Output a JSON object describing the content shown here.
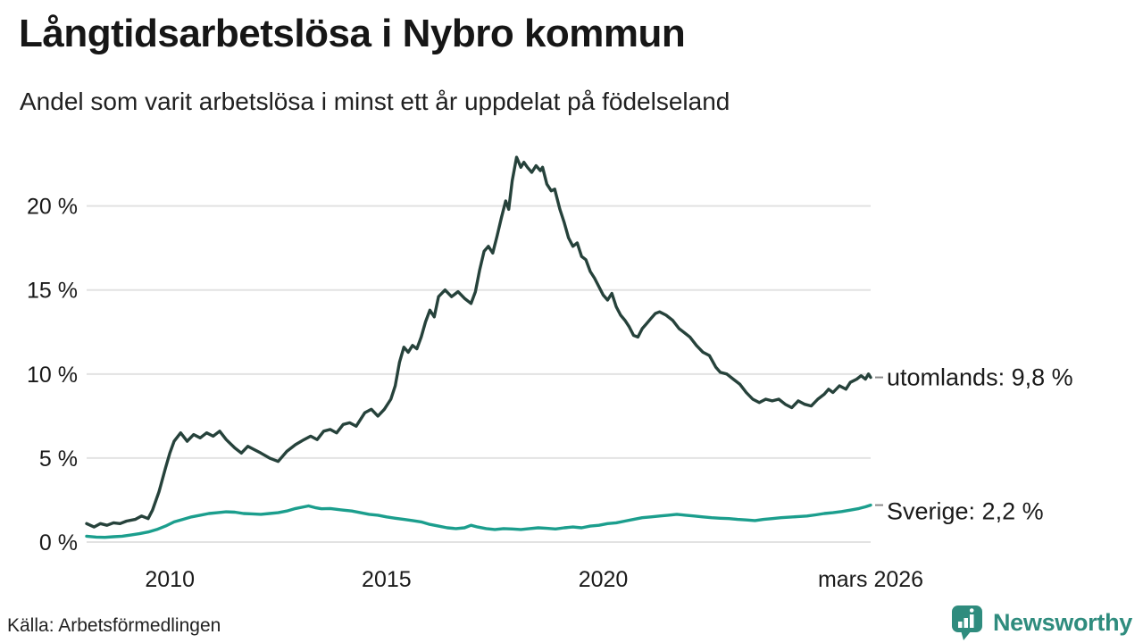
{
  "header": {
    "title": "Långtidsarbetslösa i Nybro kommun",
    "subtitle": "Andel som varit arbetslösa i minst ett år uppdelat på födelseland"
  },
  "chart_data": {
    "type": "line",
    "title": "Långtidsarbetslösa i Nybro kommun",
    "subtitle": "Andel som varit arbetslösa i minst ett år uppdelat på födelseland",
    "x_unit": "decimal_year",
    "xlim": [
      2008.08,
      2026.17
    ],
    "ylim": [
      0,
      23.7
    ],
    "grid": "horizontal",
    "grid_color": "#e2e2e2",
    "text_color": "#1a1a1a",
    "leader_color": "#8a8a8a",
    "y_ticks": [
      {
        "value": 0,
        "label": "0 %"
      },
      {
        "value": 5,
        "label": "5 %"
      },
      {
        "value": 10,
        "label": "10 %"
      },
      {
        "value": 15,
        "label": "15 %"
      },
      {
        "value": 20,
        "label": "20 %"
      }
    ],
    "x_ticks": [
      {
        "value": 2010,
        "label": "2010"
      },
      {
        "value": 2015,
        "label": "2015"
      },
      {
        "value": 2020,
        "label": "2020"
      },
      {
        "value": 2026.17,
        "label": "mars 2026"
      }
    ],
    "series": [
      {
        "name": "utomlands",
        "color": "#26423b",
        "end_label": "utomlands: 9,8 %",
        "end_value": 9.8,
        "label_dy": 0,
        "points": [
          [
            2008.08,
            1.1
          ],
          [
            2008.25,
            0.9
          ],
          [
            2008.4,
            1.1
          ],
          [
            2008.55,
            1.0
          ],
          [
            2008.7,
            1.15
          ],
          [
            2008.85,
            1.1
          ],
          [
            2009.0,
            1.25
          ],
          [
            2009.2,
            1.35
          ],
          [
            2009.35,
            1.55
          ],
          [
            2009.5,
            1.4
          ],
          [
            2009.6,
            1.9
          ],
          [
            2009.75,
            3.0
          ],
          [
            2009.9,
            4.4
          ],
          [
            2010.0,
            5.3
          ],
          [
            2010.1,
            6.0
          ],
          [
            2010.25,
            6.5
          ],
          [
            2010.4,
            6.0
          ],
          [
            2010.55,
            6.4
          ],
          [
            2010.7,
            6.2
          ],
          [
            2010.85,
            6.5
          ],
          [
            2011.0,
            6.3
          ],
          [
            2011.15,
            6.6
          ],
          [
            2011.3,
            6.1
          ],
          [
            2011.5,
            5.6
          ],
          [
            2011.65,
            5.3
          ],
          [
            2011.8,
            5.7
          ],
          [
            2011.95,
            5.5
          ],
          [
            2012.1,
            5.3
          ],
          [
            2012.3,
            5.0
          ],
          [
            2012.5,
            4.8
          ],
          [
            2012.7,
            5.4
          ],
          [
            2012.9,
            5.8
          ],
          [
            2013.1,
            6.1
          ],
          [
            2013.25,
            6.3
          ],
          [
            2013.4,
            6.1
          ],
          [
            2013.55,
            6.6
          ],
          [
            2013.7,
            6.7
          ],
          [
            2013.85,
            6.5
          ],
          [
            2014.0,
            7.0
          ],
          [
            2014.15,
            7.1
          ],
          [
            2014.3,
            6.9
          ],
          [
            2014.5,
            7.7
          ],
          [
            2014.65,
            7.9
          ],
          [
            2014.8,
            7.5
          ],
          [
            2014.95,
            7.9
          ],
          [
            2015.1,
            8.5
          ],
          [
            2015.2,
            9.3
          ],
          [
            2015.3,
            10.7
          ],
          [
            2015.4,
            11.6
          ],
          [
            2015.5,
            11.3
          ],
          [
            2015.6,
            11.7
          ],
          [
            2015.7,
            11.5
          ],
          [
            2015.8,
            12.2
          ],
          [
            2015.9,
            13.1
          ],
          [
            2016.0,
            13.8
          ],
          [
            2016.1,
            13.4
          ],
          [
            2016.2,
            14.6
          ],
          [
            2016.35,
            15.0
          ],
          [
            2016.5,
            14.6
          ],
          [
            2016.65,
            14.9
          ],
          [
            2016.8,
            14.5
          ],
          [
            2016.95,
            14.2
          ],
          [
            2017.05,
            14.9
          ],
          [
            2017.15,
            16.2
          ],
          [
            2017.25,
            17.3
          ],
          [
            2017.35,
            17.6
          ],
          [
            2017.45,
            17.2
          ],
          [
            2017.55,
            18.2
          ],
          [
            2017.65,
            19.3
          ],
          [
            2017.75,
            20.3
          ],
          [
            2017.82,
            19.8
          ],
          [
            2017.9,
            21.5
          ],
          [
            2018.0,
            22.9
          ],
          [
            2018.1,
            22.3
          ],
          [
            2018.17,
            22.6
          ],
          [
            2018.25,
            22.3
          ],
          [
            2018.35,
            22.0
          ],
          [
            2018.45,
            22.4
          ],
          [
            2018.55,
            22.1
          ],
          [
            2018.6,
            22.3
          ],
          [
            2018.7,
            21.3
          ],
          [
            2018.8,
            20.9
          ],
          [
            2018.88,
            21.0
          ],
          [
            2019.0,
            19.8
          ],
          [
            2019.1,
            19.0
          ],
          [
            2019.2,
            18.1
          ],
          [
            2019.3,
            17.6
          ],
          [
            2019.4,
            17.8
          ],
          [
            2019.5,
            17.0
          ],
          [
            2019.6,
            16.8
          ],
          [
            2019.7,
            16.1
          ],
          [
            2019.8,
            15.7
          ],
          [
            2019.9,
            15.2
          ],
          [
            2020.0,
            14.7
          ],
          [
            2020.1,
            14.4
          ],
          [
            2020.2,
            14.8
          ],
          [
            2020.3,
            14.0
          ],
          [
            2020.4,
            13.5
          ],
          [
            2020.5,
            13.2
          ],
          [
            2020.6,
            12.8
          ],
          [
            2020.7,
            12.3
          ],
          [
            2020.8,
            12.2
          ],
          [
            2020.9,
            12.7
          ],
          [
            2021.0,
            13.0
          ],
          [
            2021.1,
            13.3
          ],
          [
            2021.2,
            13.6
          ],
          [
            2021.3,
            13.7
          ],
          [
            2021.45,
            13.5
          ],
          [
            2021.6,
            13.2
          ],
          [
            2021.75,
            12.7
          ],
          [
            2021.9,
            12.4
          ],
          [
            2022.0,
            12.2
          ],
          [
            2022.15,
            11.7
          ],
          [
            2022.3,
            11.3
          ],
          [
            2022.45,
            11.1
          ],
          [
            2022.6,
            10.4
          ],
          [
            2022.7,
            10.1
          ],
          [
            2022.85,
            10.0
          ],
          [
            2023.0,
            9.7
          ],
          [
            2023.15,
            9.4
          ],
          [
            2023.3,
            8.9
          ],
          [
            2023.45,
            8.5
          ],
          [
            2023.6,
            8.3
          ],
          [
            2023.75,
            8.5
          ],
          [
            2023.9,
            8.4
          ],
          [
            2024.05,
            8.5
          ],
          [
            2024.2,
            8.2
          ],
          [
            2024.35,
            8.0
          ],
          [
            2024.5,
            8.4
          ],
          [
            2024.65,
            8.2
          ],
          [
            2024.8,
            8.1
          ],
          [
            2024.95,
            8.5
          ],
          [
            2025.1,
            8.8
          ],
          [
            2025.2,
            9.1
          ],
          [
            2025.3,
            8.9
          ],
          [
            2025.45,
            9.3
          ],
          [
            2025.6,
            9.1
          ],
          [
            2025.7,
            9.5
          ],
          [
            2025.85,
            9.7
          ],
          [
            2025.95,
            9.9
          ],
          [
            2026.05,
            9.7
          ],
          [
            2026.12,
            10.0
          ],
          [
            2026.17,
            9.8
          ]
        ]
      },
      {
        "name": "Sverige",
        "color": "#1b9e8d",
        "end_label": "Sverige: 2,2 %",
        "end_value": 2.2,
        "label_dy": 7,
        "points": [
          [
            2008.08,
            0.35
          ],
          [
            2008.3,
            0.3
          ],
          [
            2008.5,
            0.28
          ],
          [
            2008.7,
            0.32
          ],
          [
            2008.9,
            0.35
          ],
          [
            2009.1,
            0.42
          ],
          [
            2009.3,
            0.5
          ],
          [
            2009.5,
            0.6
          ],
          [
            2009.7,
            0.75
          ],
          [
            2009.9,
            0.95
          ],
          [
            2010.1,
            1.2
          ],
          [
            2010.3,
            1.35
          ],
          [
            2010.5,
            1.5
          ],
          [
            2010.7,
            1.6
          ],
          [
            2010.9,
            1.7
          ],
          [
            2011.1,
            1.75
          ],
          [
            2011.3,
            1.8
          ],
          [
            2011.5,
            1.78
          ],
          [
            2011.7,
            1.7
          ],
          [
            2011.9,
            1.68
          ],
          [
            2012.1,
            1.65
          ],
          [
            2012.3,
            1.7
          ],
          [
            2012.5,
            1.75
          ],
          [
            2012.7,
            1.85
          ],
          [
            2012.9,
            2.0
          ],
          [
            2013.1,
            2.1
          ],
          [
            2013.2,
            2.15
          ],
          [
            2013.35,
            2.05
          ],
          [
            2013.5,
            1.98
          ],
          [
            2013.7,
            2.0
          ],
          [
            2013.85,
            1.95
          ],
          [
            2014.0,
            1.9
          ],
          [
            2014.2,
            1.85
          ],
          [
            2014.4,
            1.75
          ],
          [
            2014.6,
            1.65
          ],
          [
            2014.8,
            1.6
          ],
          [
            2015.0,
            1.5
          ],
          [
            2015.2,
            1.42
          ],
          [
            2015.4,
            1.35
          ],
          [
            2015.6,
            1.28
          ],
          [
            2015.8,
            1.2
          ],
          [
            2016.0,
            1.05
          ],
          [
            2016.2,
            0.95
          ],
          [
            2016.4,
            0.85
          ],
          [
            2016.6,
            0.8
          ],
          [
            2016.8,
            0.85
          ],
          [
            2016.95,
            1.0
          ],
          [
            2017.1,
            0.9
          ],
          [
            2017.3,
            0.8
          ],
          [
            2017.5,
            0.75
          ],
          [
            2017.7,
            0.8
          ],
          [
            2017.9,
            0.78
          ],
          [
            2018.1,
            0.75
          ],
          [
            2018.3,
            0.8
          ],
          [
            2018.5,
            0.85
          ],
          [
            2018.7,
            0.82
          ],
          [
            2018.9,
            0.78
          ],
          [
            2019.1,
            0.85
          ],
          [
            2019.3,
            0.9
          ],
          [
            2019.5,
            0.85
          ],
          [
            2019.7,
            0.95
          ],
          [
            2019.9,
            1.0
          ],
          [
            2020.1,
            1.1
          ],
          [
            2020.3,
            1.15
          ],
          [
            2020.5,
            1.25
          ],
          [
            2020.7,
            1.35
          ],
          [
            2020.9,
            1.45
          ],
          [
            2021.1,
            1.5
          ],
          [
            2021.3,
            1.55
          ],
          [
            2021.5,
            1.6
          ],
          [
            2021.7,
            1.65
          ],
          [
            2021.9,
            1.6
          ],
          [
            2022.1,
            1.55
          ],
          [
            2022.3,
            1.5
          ],
          [
            2022.5,
            1.45
          ],
          [
            2022.7,
            1.42
          ],
          [
            2022.9,
            1.4
          ],
          [
            2023.1,
            1.35
          ],
          [
            2023.3,
            1.32
          ],
          [
            2023.5,
            1.28
          ],
          [
            2023.7,
            1.35
          ],
          [
            2023.9,
            1.4
          ],
          [
            2024.1,
            1.45
          ],
          [
            2024.3,
            1.48
          ],
          [
            2024.5,
            1.52
          ],
          [
            2024.7,
            1.55
          ],
          [
            2024.9,
            1.62
          ],
          [
            2025.1,
            1.7
          ],
          [
            2025.3,
            1.75
          ],
          [
            2025.5,
            1.82
          ],
          [
            2025.7,
            1.9
          ],
          [
            2025.9,
            2.0
          ],
          [
            2026.05,
            2.1
          ],
          [
            2026.17,
            2.2
          ]
        ]
      }
    ]
  },
  "footer": {
    "source": "Källa: Arbetsförmedlingen",
    "logo_text": "Newsworthy",
    "brand_color": "#2f8c7e"
  }
}
